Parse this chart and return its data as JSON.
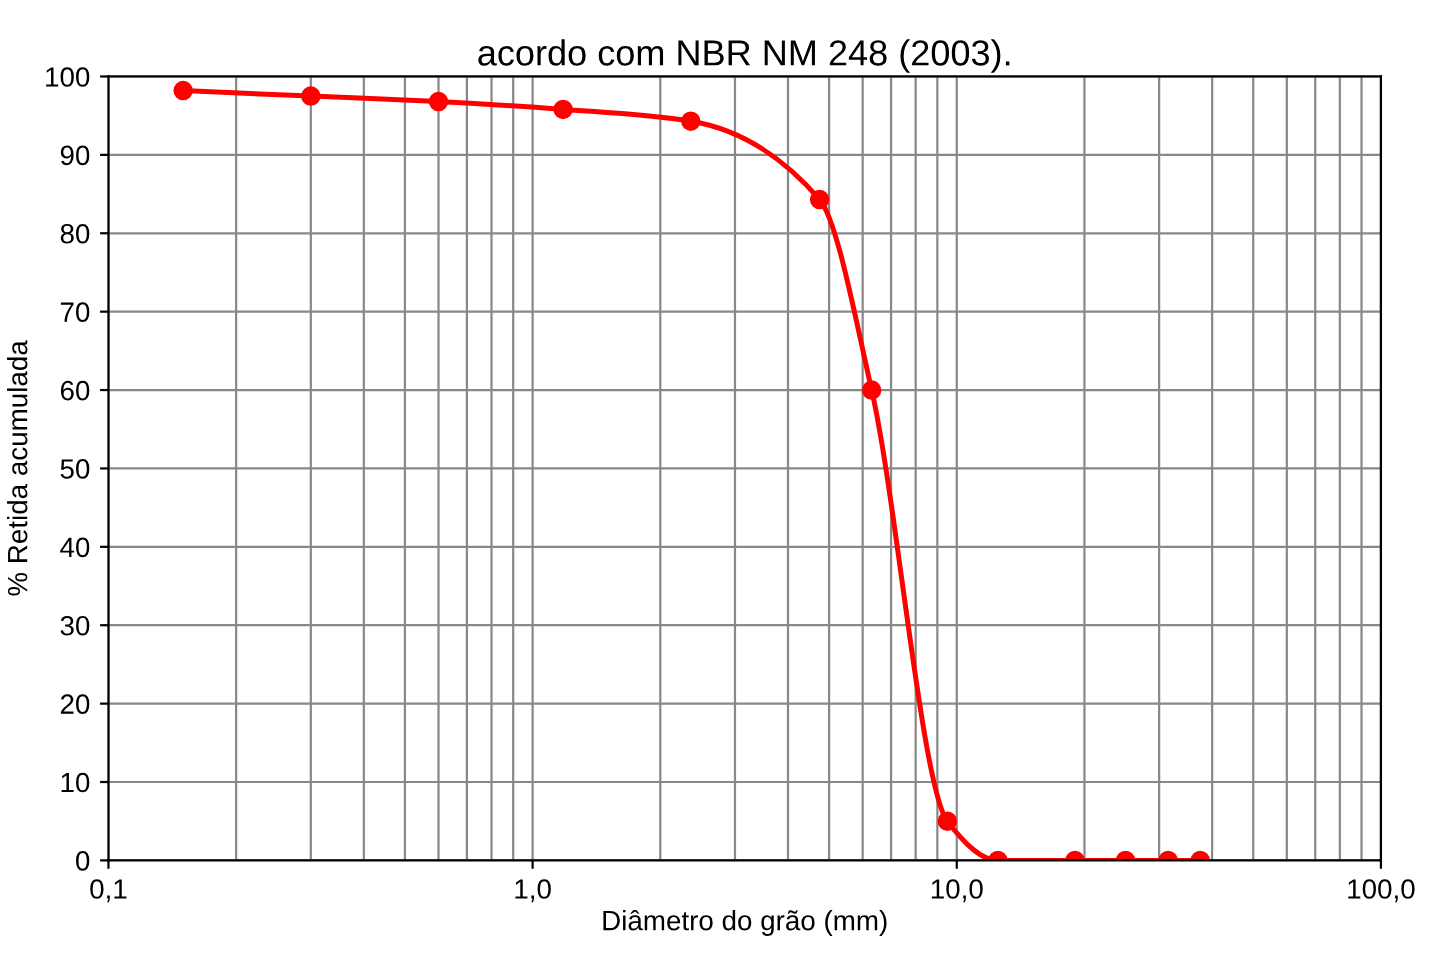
{
  "chart_data": {
    "type": "line",
    "title": "acordo com NBR NM 248 (2003).",
    "xlabel": "Diâmetro do grão (mm)",
    "ylabel": "% Retida acumulada",
    "log": "x",
    "grid": true,
    "marker": "circle",
    "line_style": "solid",
    "xlim": [
      0.1,
      100
    ],
    "ylim": [
      0,
      100
    ],
    "xticks": [
      {
        "value": 0.1,
        "label": "0,1"
      },
      {
        "value": 0.2,
        "label": null
      },
      {
        "value": 0.3,
        "label": null
      },
      {
        "value": 0.4,
        "label": null
      },
      {
        "value": 0.5,
        "label": null
      },
      {
        "value": 0.6,
        "label": null
      },
      {
        "value": 0.7,
        "label": null
      },
      {
        "value": 0.8,
        "label": null
      },
      {
        "value": 0.9,
        "label": null
      },
      {
        "value": 1,
        "label": "1,0"
      },
      {
        "value": 2,
        "label": null
      },
      {
        "value": 3,
        "label": null
      },
      {
        "value": 4,
        "label": null
      },
      {
        "value": 5,
        "label": null
      },
      {
        "value": 6,
        "label": null
      },
      {
        "value": 7,
        "label": null
      },
      {
        "value": 8,
        "label": null
      },
      {
        "value": 9,
        "label": null
      },
      {
        "value": 10,
        "label": "10,0"
      },
      {
        "value": 20,
        "label": null
      },
      {
        "value": 30,
        "label": null
      },
      {
        "value": 40,
        "label": null
      },
      {
        "value": 50,
        "label": null
      },
      {
        "value": 60,
        "label": null
      },
      {
        "value": 70,
        "label": null
      },
      {
        "value": 80,
        "label": null
      },
      {
        "value": 90,
        "label": null
      },
      {
        "value": 100,
        "label": "100,0"
      }
    ],
    "yticks": [
      0,
      10,
      20,
      30,
      40,
      50,
      60,
      70,
      80,
      90,
      100
    ],
    "x": [
      0.15,
      0.3,
      0.6,
      1.18,
      2.36,
      4.75,
      6.3,
      9.5,
      12.5,
      19,
      25,
      31.5,
      37.5
    ],
    "series": [
      {
        "color": "#ff0000",
        "values": [
          98.2,
          97.5,
          96.8,
          95.8,
          94.3,
          84.3,
          60,
          5,
          0,
          0,
          0,
          0,
          0
        ]
      }
    ]
  }
}
